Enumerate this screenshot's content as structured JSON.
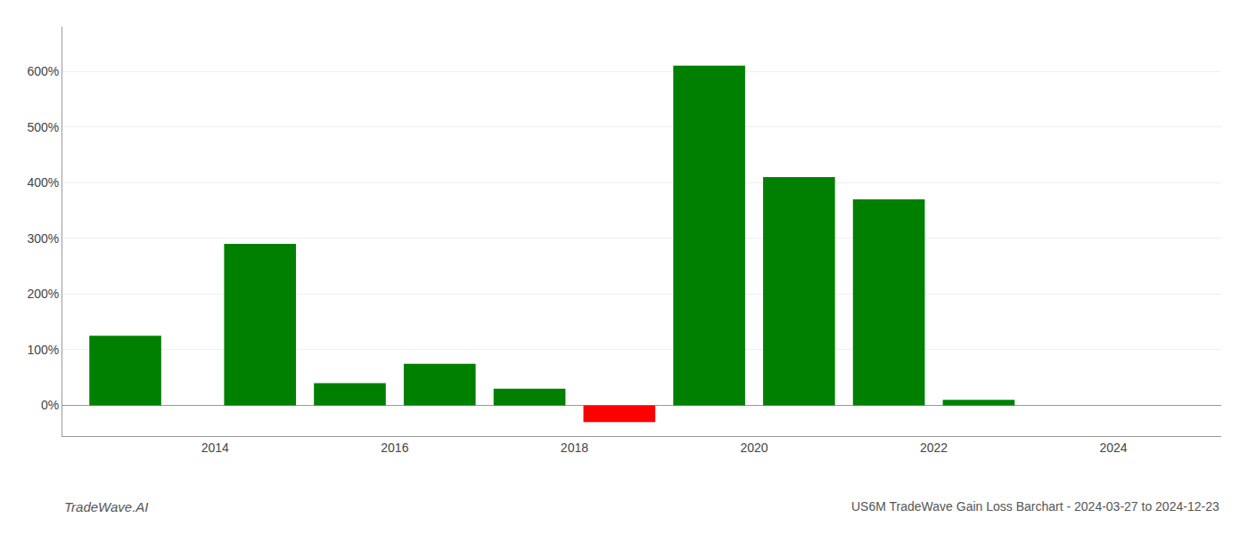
{
  "chart_data": {
    "type": "bar",
    "title": "US6M TradeWave Gain Loss Barchart - 2024-03-27 to 2024-12-23",
    "annotations": [
      "TradeWave.AI"
    ],
    "x": [
      2013.0,
      2014.5,
      2015.5,
      2016.5,
      2017.5,
      2018.5,
      2019.5,
      2020.5,
      2021.5,
      2022.5,
      2023.5
    ],
    "values": [
      1.25,
      2.9,
      0.4,
      0.75,
      0.3,
      -0.3,
      6.1,
      4.1,
      3.7,
      0.1,
      0.0
    ],
    "colors": [
      "#008000",
      "#008000",
      "#008000",
      "#008000",
      "#008000",
      "#ff0000",
      "#008000",
      "#008000",
      "#008000",
      "#008000",
      "#008000"
    ],
    "xlim": [
      2012.3,
      2025.2
    ],
    "xticks": [
      2014,
      2016,
      2018,
      2020,
      2022,
      2024
    ],
    "ylim": [
      -0.55,
      6.8
    ],
    "yticks": [
      {
        "value": 0,
        "label": "0%"
      },
      {
        "value": 1,
        "label": "100%"
      },
      {
        "value": 2,
        "label": "200%"
      },
      {
        "value": 3,
        "label": "300%"
      },
      {
        "value": 4,
        "label": "400%"
      },
      {
        "value": 5,
        "label": "500%"
      },
      {
        "value": 6,
        "label": "600%"
      }
    ],
    "grid": true
  }
}
